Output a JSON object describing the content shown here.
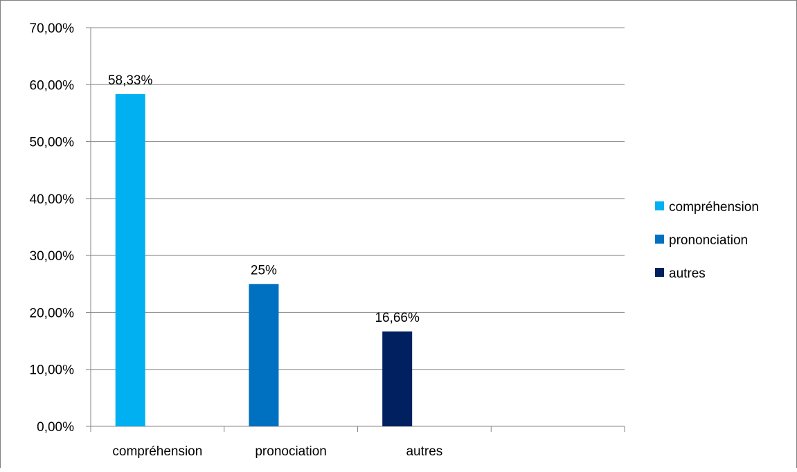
{
  "chart_data": {
    "type": "bar",
    "title": "",
    "xlabel": "",
    "ylabel": "",
    "categories": [
      "compréhension",
      "pronociation",
      "autres",
      ""
    ],
    "series": [
      {
        "name": "compréhension",
        "category_index": 0,
        "value": 58.33,
        "label": "58,33%",
        "color": "#00B0F0"
      },
      {
        "name": "prononciation",
        "category_index": 1,
        "value": 25,
        "label": "25%",
        "color": "#0070C0"
      },
      {
        "name": "autres",
        "category_index": 2,
        "value": 16.66,
        "label": "16,66%",
        "color": "#002060"
      }
    ],
    "ylim": [
      0,
      70
    ],
    "yticks": [
      0,
      10,
      20,
      30,
      40,
      50,
      60,
      70
    ],
    "ytick_labels": [
      "0,00%",
      "10,00%",
      "20,00%",
      "30,00%",
      "40,00%",
      "50,00%",
      "60,00%",
      "70,00%"
    ],
    "grid": true,
    "legend_position": "right",
    "colors": {
      "grid": "#868686",
      "axis": "#868686"
    }
  }
}
